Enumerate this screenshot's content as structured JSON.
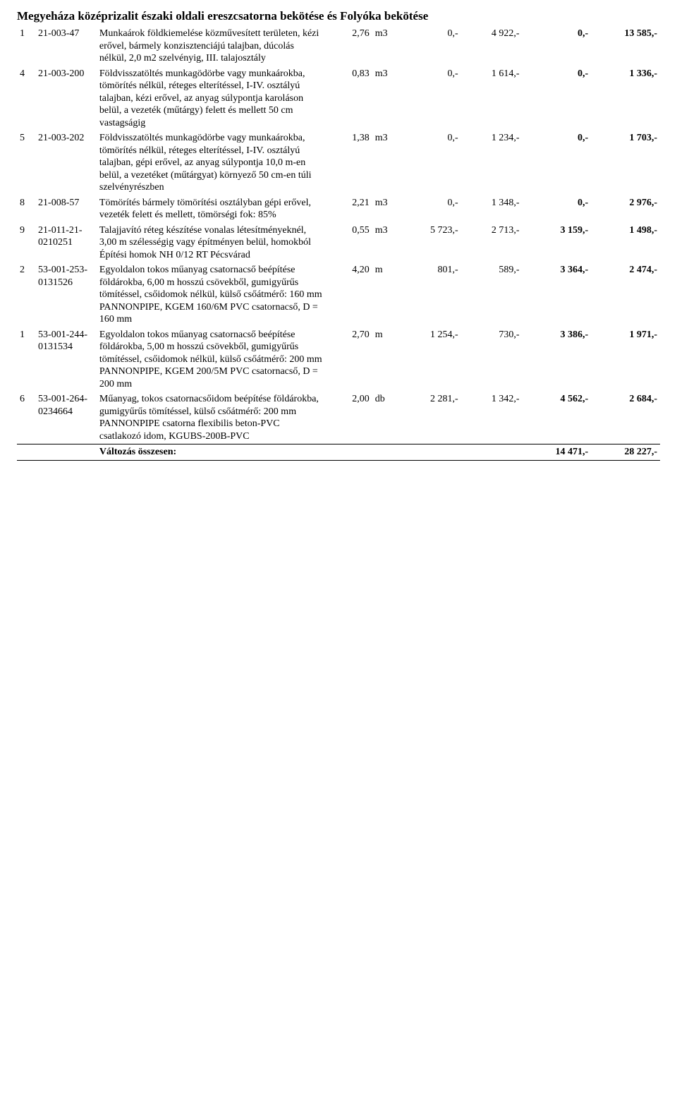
{
  "title": "Megyeháza középrizalit északi oldali ereszcsatorna bekötése és Folyóka bekötése",
  "items": [
    {
      "n": "1",
      "code": "21-003-47",
      "desc": "Munkaárok földkiemelése közművesített területen, kézi erővel, bármely konzisztenciájú talajban, dúcolás nélkül, 2,0 m2 szelvényig, III. talajosztály",
      "qty": "2,76",
      "unit": "m3",
      "u1": "0,-",
      "u2": "4 922,-",
      "t1": "0,-",
      "t2": "13 585,-"
    },
    {
      "n": "4",
      "code": "21-003-200",
      "desc": "Földvisszatöltés munkagödörbe vagy munkaárokba, tömörítés nélkül, réteges elterítéssel, I-IV. osztályú talajban, kézi erővel, az anyag súlypontja karoláson belül, a vezeték (műtárgy) felett és mellett 50 cm vastagságig",
      "qty": "0,83",
      "unit": "m3",
      "u1": "0,-",
      "u2": "1 614,-",
      "t1": "0,-",
      "t2": "1 336,-"
    },
    {
      "n": "5",
      "code": "21-003-202",
      "desc": "Földvisszatöltés munkagödörbe vagy munkaárokba, tömörítés nélkül, réteges elterítéssel, I-IV. osztályú talajban, gépi erővel, az anyag súlypontja 10,0 m-en belül, a vezetéket (műtárgyat) környező 50 cm-en túli szelvényrészben",
      "qty": "1,38",
      "unit": "m3",
      "u1": "0,-",
      "u2": "1 234,-",
      "t1": "0,-",
      "t2": "1 703,-"
    },
    {
      "n": "8",
      "code": "21-008-57",
      "desc": "Tömörítés bármely tömörítési osztályban gépi erővel, vezeték felett és mellett, tömörségi fok: 85%",
      "qty": "2,21",
      "unit": "m3",
      "u1": "0,-",
      "u2": "1 348,-",
      "t1": "0,-",
      "t2": "2 976,-"
    },
    {
      "n": "9",
      "code": "21-011-21-0210251",
      "desc": "Talajjavító réteg készítése vonalas létesítményeknél, 3,00 m szélességig vagy építményen belül, homokból Építési homok NH 0/12 RT Pécsvárad",
      "qty": "0,55",
      "unit": "m3",
      "u1": "5 723,-",
      "u2": "2 713,-",
      "t1": "3 159,-",
      "t2": "1 498,-"
    },
    {
      "n": "2",
      "code": "53-001-253-0131526",
      "desc": "Egyoldalon tokos műanyag csatornacső beépítése földárokba, 6,00 m hosszú csövekből, gumigyűrűs tömítéssel, csőidomok nélkül, külső csőátmérő: 160 mm PANNONPIPE, KGEM 160/6M PVC csatornacső, D = 160 mm",
      "qty": "4,20",
      "unit": "m",
      "u1": "801,-",
      "u2": "589,-",
      "t1": "3 364,-",
      "t2": "2 474,-"
    },
    {
      "n": "1",
      "code": "53-001-244-0131534",
      "desc": "Egyoldalon tokos műanyag csatornacső beépítése földárokba, 5,00 m hosszú csövekből, gumigyűrűs tömítéssel, csőidomok nélkül, külső csőátmérő: 200 mm PANNONPIPE, KGEM 200/5M PVC csatornacső, D = 200 mm",
      "qty": "2,70",
      "unit": "m",
      "u1": "1 254,-",
      "u2": "730,-",
      "t1": "3 386,-",
      "t2": "1 971,-"
    },
    {
      "n": "6",
      "code": "53-001-264-0234664",
      "desc": "Műanyag, tokos csatornacsőidom beépítése földárokba, gumigyűrűs tömítéssel, külső csőátmérő: 200 mm  PANNONPIPE csatorna flexibilis beton-PVC csatlakozó idom, KGUBS-200B-PVC",
      "qty": "2,00",
      "unit": "db",
      "u1": "2 281,-",
      "u2": "1 342,-",
      "t1": "4 562,-",
      "t2": "2 684,-"
    }
  ],
  "summary": {
    "label": "Változás összesen:",
    "t1": "14 471,-",
    "t2": "28 227,-"
  },
  "gaps": [
    false,
    false,
    true,
    true,
    false,
    true,
    true,
    true
  ]
}
